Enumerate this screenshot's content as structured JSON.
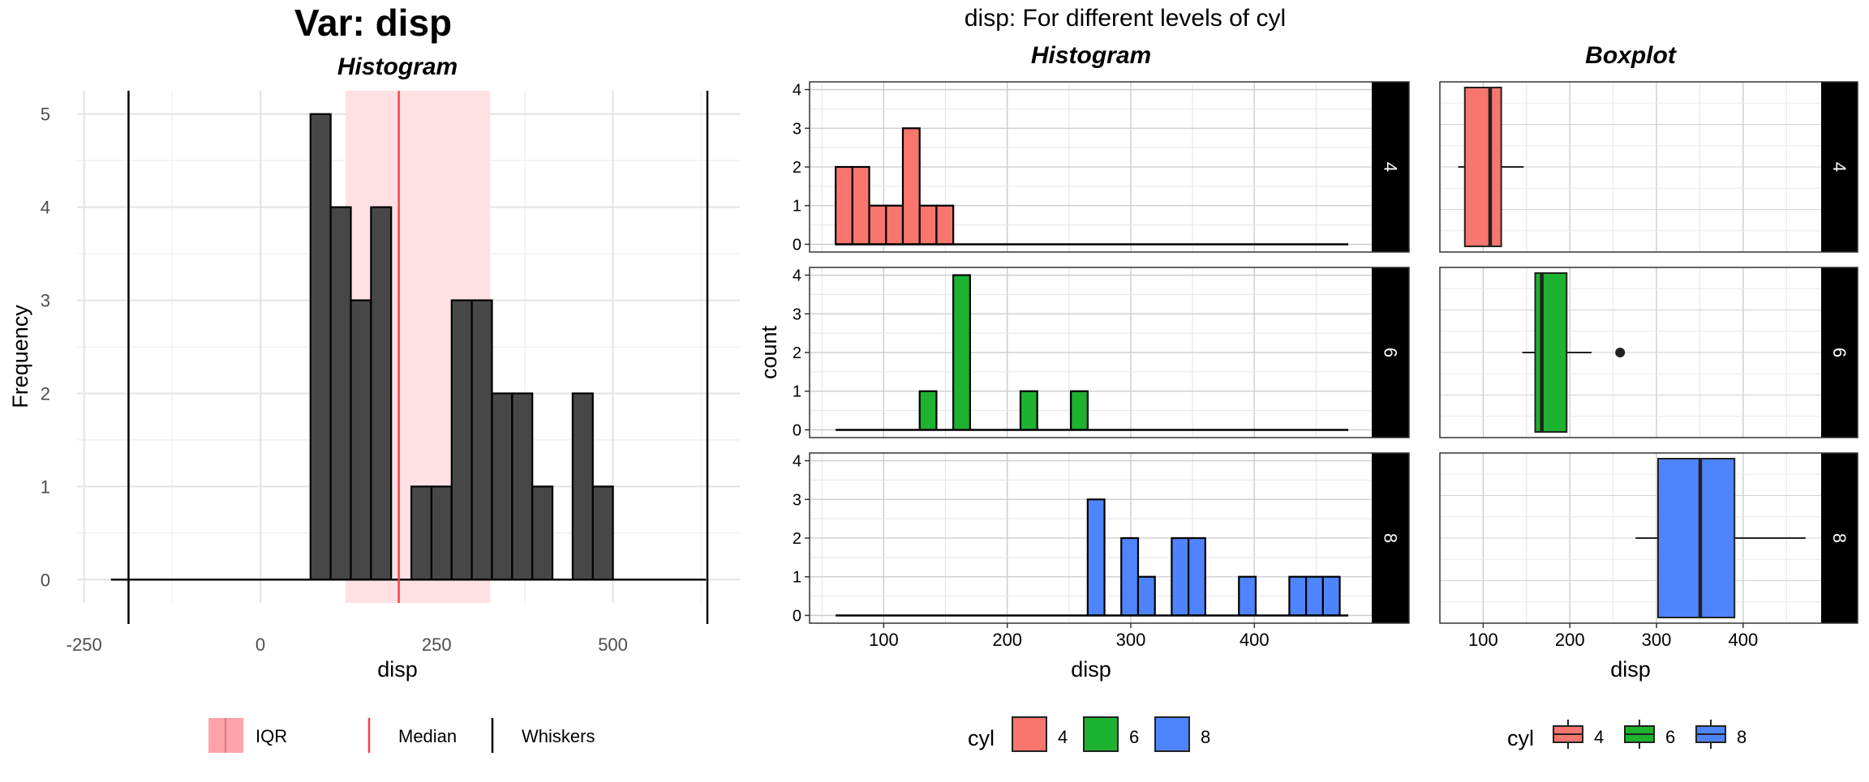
{
  "left_title": "Var: disp",
  "right_title": "disp: For different levels of cyl",
  "chart_data": [
    {
      "type": "bar",
      "name": "overall-histogram",
      "title": "Histogram",
      "xlabel": "disp",
      "ylabel": "Frequency",
      "xlim": [
        -260,
        680
      ],
      "ylim": [
        -0.25,
        5.25
      ],
      "x_ticks": [
        -250,
        0,
        250,
        500
      ],
      "x_tick_labels": [
        "-250",
        "0",
        "250",
        "500"
      ],
      "y_ticks": [
        0,
        1,
        2,
        3,
        4,
        5
      ],
      "y_tick_labels": [
        "0",
        "1",
        "2",
        "3",
        "4",
        "5"
      ],
      "bin_width": 28.6,
      "bin_start": 71.1,
      "counts": [
        5,
        4,
        3,
        4,
        0,
        1,
        1,
        3,
        3,
        2,
        2,
        1,
        0,
        2,
        1
      ],
      "iqr": [
        120.8,
        326
      ],
      "median": 196.3,
      "whiskers": [
        -187,
        634
      ],
      "baseline": [
        -212,
        632
      ],
      "bar_color": "#474747",
      "iqr_color": "#FFDFE3",
      "median_color": "#F0454B",
      "legend": [
        {
          "key": "iqr",
          "label": "IQR"
        },
        {
          "key": "median",
          "label": "Median"
        },
        {
          "key": "whiskers",
          "label": "Whiskers"
        }
      ]
    },
    {
      "type": "bar",
      "name": "faceted-histogram",
      "title": "Histogram",
      "xlabel": "disp",
      "ylabel": "count",
      "xlim": [
        40,
        495
      ],
      "ylim": [
        -0.2,
        4.2
      ],
      "x_ticks": [
        100,
        200,
        300,
        400
      ],
      "x_tick_labels": [
        "100",
        "200",
        "300",
        "400"
      ],
      "y_ticks": [
        0,
        1,
        2,
        3,
        4
      ],
      "y_tick_labels": [
        "0",
        "1",
        "2",
        "3",
        "4"
      ],
      "bin_width": 13.6,
      "bin_start": 61.1,
      "baseline": [
        61.1,
        476
      ],
      "facets": [
        {
          "level": "4",
          "color": "#F8766D",
          "bins": [
            [
              0,
              2
            ],
            [
              1,
              2
            ],
            [
              2,
              1
            ],
            [
              3,
              1
            ],
            [
              4,
              3
            ],
            [
              5,
              1
            ],
            [
              6,
              1
            ]
          ]
        },
        {
          "level": "6",
          "color": "#1DB22F",
          "bins": [
            [
              5,
              1
            ],
            [
              7,
              4
            ],
            [
              11,
              1
            ],
            [
              14,
              1
            ]
          ]
        },
        {
          "level": "8",
          "color": "#4F84FF",
          "bins": [
            [
              15,
              3
            ],
            [
              17,
              2
            ],
            [
              18,
              1
            ],
            [
              20,
              2
            ],
            [
              21,
              2
            ],
            [
              24,
              1
            ],
            [
              27,
              1
            ],
            [
              28,
              1
            ],
            [
              29,
              1
            ]
          ]
        }
      ]
    },
    {
      "type": "boxplot",
      "name": "faceted-boxplot",
      "title": "Boxplot",
      "xlabel": "disp",
      "xlim": [
        50,
        490
      ],
      "x_ticks": [
        100,
        200,
        300,
        400
      ],
      "x_tick_labels": [
        "100",
        "200",
        "300",
        "400"
      ],
      "facets": [
        {
          "level": "4",
          "color": "#F8766D",
          "min": 71.1,
          "q1": 78.8,
          "median": 108,
          "q3": 120.8,
          "max": 146.7,
          "outliers": []
        },
        {
          "level": "6",
          "color": "#1DB22F",
          "min": 145,
          "q1": 160,
          "median": 167.6,
          "q3": 196.3,
          "max": 225,
          "outliers": [
            258
          ]
        },
        {
          "level": "8",
          "color": "#4F84FF",
          "min": 275.8,
          "q1": 301.8,
          "median": 350.5,
          "q3": 390,
          "max": 472,
          "outliers": []
        }
      ]
    }
  ],
  "fill_legend": {
    "title": "cyl",
    "items": [
      {
        "label": "4",
        "color": "#F8766D"
      },
      {
        "label": "6",
        "color": "#1DB22F"
      },
      {
        "label": "8",
        "color": "#4F84FF"
      }
    ]
  },
  "box_legend": {
    "title": "cyl",
    "items": [
      {
        "label": "4",
        "color": "#F8766D"
      },
      {
        "label": "6",
        "color": "#1DB22F"
      },
      {
        "label": "8",
        "color": "#4F84FF"
      }
    ]
  }
}
